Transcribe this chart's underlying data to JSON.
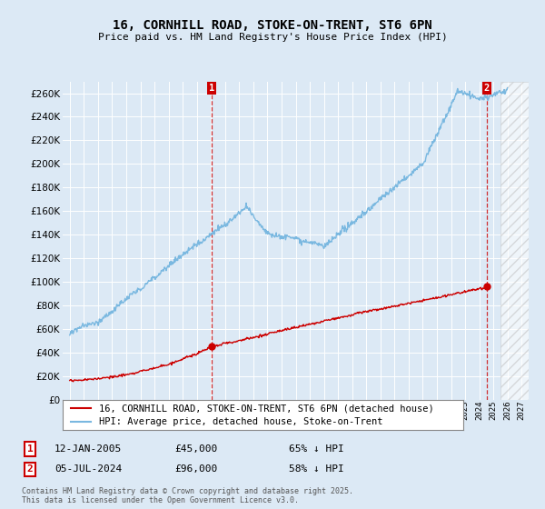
{
  "title": "16, CORNHILL ROAD, STOKE-ON-TRENT, ST6 6PN",
  "subtitle": "Price paid vs. HM Land Registry's House Price Index (HPI)",
  "ylim": [
    0,
    270000
  ],
  "yticks": [
    0,
    20000,
    40000,
    60000,
    80000,
    100000,
    120000,
    140000,
    160000,
    180000,
    200000,
    220000,
    240000,
    260000
  ],
  "xlim_start": 1994.5,
  "xlim_end": 2027.5,
  "background_color": "#dce9f5",
  "grid_color": "#ffffff",
  "hpi_color": "#7ab8e0",
  "price_color": "#cc0000",
  "marker1_date": 2005.04,
  "marker1_price": 45000,
  "marker2_date": 2024.51,
  "marker2_price": 96000,
  "legend_line1": "16, CORNHILL ROAD, STOKE-ON-TRENT, ST6 6PN (detached house)",
  "legend_line2": "HPI: Average price, detached house, Stoke-on-Trent",
  "annotation1_label": "1",
  "annotation1_date_str": "12-JAN-2005",
  "annotation1_price_str": "£45,000",
  "annotation1_hpi_str": "65% ↓ HPI",
  "annotation2_label": "2",
  "annotation2_date_str": "05-JUL-2024",
  "annotation2_price_str": "£96,000",
  "annotation2_hpi_str": "58% ↓ HPI",
  "footnote": "Contains HM Land Registry data © Crown copyright and database right 2025.\nThis data is licensed under the Open Government Licence v3.0."
}
